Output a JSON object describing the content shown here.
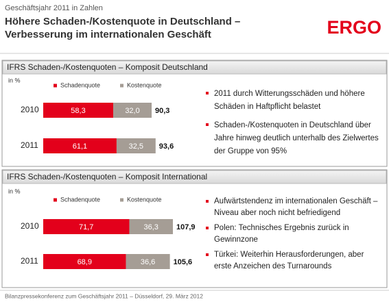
{
  "header": {
    "kicker": "Geschäftsjahr 2011 in Zahlen",
    "title": [
      "Höhere Schaden-/Kostenquote in Deutschland –",
      "Verbesserung im internationalen Geschäft"
    ],
    "logo": "ERGO"
  },
  "chart_data": [
    {
      "type": "bar",
      "stacked": true,
      "orientation": "horizontal",
      "title": "IFRS Schaden-/Kostenquoten – Komposit Deutschland",
      "unit": "in %",
      "categories": [
        "2010",
        "2011"
      ],
      "series": [
        {
          "name": "Schadenquote",
          "color": "#e3001b",
          "values": [
            58.3,
            61.1
          ],
          "value_labels": [
            "58,3",
            "61,1"
          ]
        },
        {
          "name": "Kostenquote",
          "color": "#a59d95",
          "values": [
            32.0,
            32.5
          ],
          "value_labels": [
            "32,0",
            "32,5"
          ]
        }
      ],
      "totals": [
        90.3,
        93.6
      ],
      "total_labels": [
        "90,3",
        "93,6"
      ]
    },
    {
      "type": "bar",
      "stacked": true,
      "orientation": "horizontal",
      "title": "IFRS Schaden-/Kostenquoten – Komposit International",
      "unit": "in %",
      "categories": [
        "2010",
        "2011"
      ],
      "series": [
        {
          "name": "Schadenquote",
          "color": "#e3001b",
          "values": [
            71.7,
            68.9
          ],
          "value_labels": [
            "71,7",
            "68,9"
          ]
        },
        {
          "name": "Kostenquote",
          "color": "#a59d95",
          "values": [
            36.3,
            36.6
          ],
          "value_labels": [
            "36,3",
            "36,6"
          ]
        }
      ],
      "totals": [
        107.9,
        105.6
      ],
      "total_labels": [
        "107,9",
        "105,6"
      ]
    }
  ],
  "bullets": [
    [
      "2011 durch Witterungsschäden und höhere Schäden in Haftpflicht belastet",
      "Schaden-/Kostenquoten in Deutschland über Jahre hinweg deutlich unterhalb des Zielwertes der Gruppe von 95%"
    ],
    [
      "Aufwärtstendenz im internationalen Geschäft – Niveau aber noch nicht befriedigend",
      "Polen: Technisches Ergebnis zurück in Gewinnzone",
      "Türkei: Weiterhin Herausforderungen, aber erste Anzeichen des Turnarounds"
    ]
  ],
  "footer": "Bilanzpressekonferenz zum Geschäftsjahr 2011 – Düsseldorf, 29. März 2012"
}
